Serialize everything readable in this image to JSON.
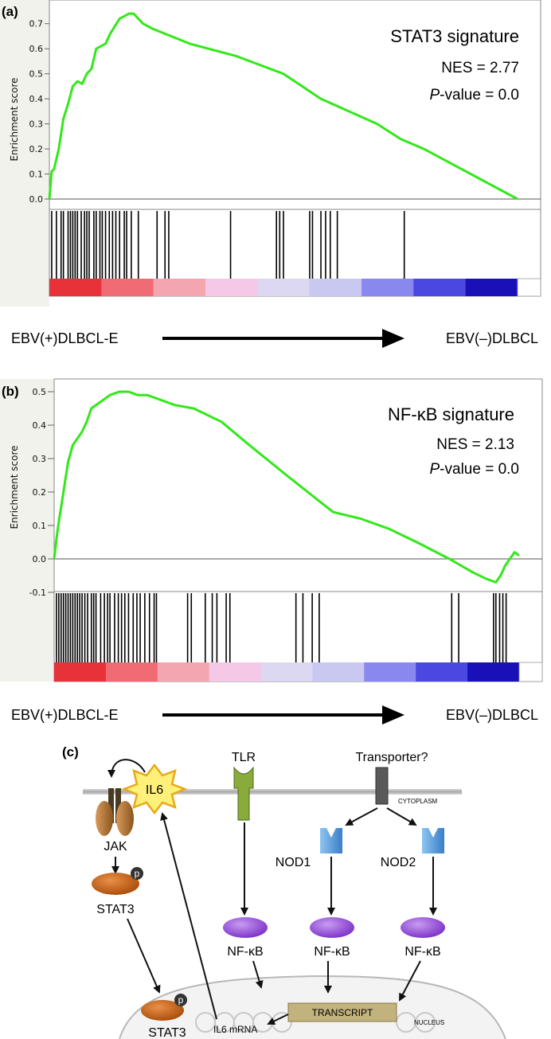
{
  "chart_data": [
    {
      "type": "line",
      "panel_label": "(a)",
      "title": "STAT3 signature",
      "nes_text": "NES = 2.77",
      "pvalue_italic": "P",
      "pvalue_rest": "-value = 0.0",
      "ylabel": "Enrichment score",
      "ylim": [
        0.0,
        0.75
      ],
      "y_ticks": [
        "0.0",
        "0.1",
        "0.2",
        "0.3",
        "0.4",
        "0.5",
        "0.6",
        "0.7"
      ],
      "y_tick_values": [
        0.0,
        0.1,
        0.2,
        0.3,
        0.4,
        0.5,
        0.6,
        0.7
      ],
      "x_range": [
        0,
        1
      ],
      "series": [
        {
          "color": "#33e81a",
          "x": [
            0.0,
            0.005,
            0.01,
            0.02,
            0.03,
            0.04,
            0.05,
            0.06,
            0.07,
            0.08,
            0.09,
            0.1,
            0.11,
            0.12,
            0.13,
            0.14,
            0.15,
            0.16,
            0.17,
            0.18,
            0.2,
            0.22,
            0.3,
            0.4,
            0.5,
            0.58,
            0.7,
            0.75,
            0.8,
            1.0
          ],
          "y": [
            0.0,
            0.11,
            0.12,
            0.2,
            0.32,
            0.38,
            0.45,
            0.47,
            0.46,
            0.5,
            0.52,
            0.6,
            0.61,
            0.62,
            0.66,
            0.69,
            0.72,
            0.73,
            0.74,
            0.74,
            0.7,
            0.68,
            0.62,
            0.57,
            0.5,
            0.4,
            0.3,
            0.24,
            0.2,
            0.0
          ]
        }
      ],
      "hits": [
        0.005,
        0.015,
        0.025,
        0.03,
        0.04,
        0.045,
        0.05,
        0.055,
        0.06,
        0.068,
        0.075,
        0.08,
        0.085,
        0.095,
        0.1,
        0.108,
        0.113,
        0.12,
        0.128,
        0.135,
        0.142,
        0.15,
        0.16,
        0.165,
        0.175,
        0.19,
        0.23,
        0.247,
        0.255,
        0.387,
        0.485,
        0.492,
        0.5,
        0.556,
        0.562,
        0.58,
        0.59,
        0.6,
        0.615,
        0.758
      ],
      "gradient_stops": [
        "#e8323a",
        "#f06b74",
        "#f4a6b0",
        "#f5c8e8",
        "#dcd8f2",
        "#c8c8f0",
        "#8888ee",
        "#4a48e0",
        "#1a10b8",
        "#ffffff"
      ]
    },
    {
      "type": "line",
      "panel_label": "(b)",
      "title": "NF-κB signature",
      "nes_text": "NES = 2.13",
      "pvalue_italic": "P",
      "pvalue_rest": "-value = 0.0",
      "ylabel": "Enrichment score",
      "ylim": [
        -0.1,
        0.5
      ],
      "y_ticks": [
        "-0.1",
        "0.0",
        "0.1",
        "0.2",
        "0.3",
        "0.4",
        "0.5"
      ],
      "y_tick_values": [
        -0.1,
        0.0,
        0.1,
        0.2,
        0.3,
        0.4,
        0.5
      ],
      "x_range": [
        0,
        1
      ],
      "series": [
        {
          "color": "#33e81a",
          "x": [
            0.0,
            0.005,
            0.01,
            0.02,
            0.03,
            0.04,
            0.05,
            0.06,
            0.07,
            0.08,
            0.1,
            0.12,
            0.14,
            0.16,
            0.18,
            0.2,
            0.22,
            0.26,
            0.3,
            0.36,
            0.42,
            0.5,
            0.6,
            0.66,
            0.72,
            0.78,
            0.85,
            0.9,
            0.93,
            0.95,
            0.96,
            0.97,
            0.98,
            0.99,
            1.0
          ],
          "y": [
            0.0,
            0.06,
            0.11,
            0.2,
            0.29,
            0.34,
            0.36,
            0.38,
            0.41,
            0.45,
            0.47,
            0.49,
            0.5,
            0.5,
            0.49,
            0.49,
            0.48,
            0.46,
            0.45,
            0.41,
            0.34,
            0.25,
            0.14,
            0.12,
            0.09,
            0.05,
            0.0,
            -0.04,
            -0.06,
            -0.07,
            -0.05,
            -0.02,
            0.0,
            0.02,
            0.01
          ]
        }
      ],
      "hits": [
        0.005,
        0.01,
        0.015,
        0.02,
        0.025,
        0.03,
        0.035,
        0.04,
        0.045,
        0.05,
        0.055,
        0.06,
        0.066,
        0.072,
        0.08,
        0.085,
        0.09,
        0.1,
        0.108,
        0.115,
        0.12,
        0.13,
        0.138,
        0.145,
        0.152,
        0.16,
        0.17,
        0.178,
        0.185,
        0.195,
        0.205,
        0.215,
        0.22,
        0.287,
        0.295,
        0.325,
        0.34,
        0.35,
        0.37,
        0.378,
        0.52,
        0.535,
        0.555,
        0.57,
        0.855,
        0.87,
        0.945,
        0.95,
        0.958,
        0.965,
        0.972
      ],
      "gradient_stops": [
        "#e8323a",
        "#f06b74",
        "#f4a6b0",
        "#f5c8e8",
        "#dcd8f2",
        "#c8c8f0",
        "#8888ee",
        "#4a48e0",
        "#1a10b8",
        "#ffffff"
      ]
    }
  ],
  "axis_arrows": [
    {
      "left_label": "EBV(+)DLBCL-E",
      "right_label": "EBV(–)DLBCL"
    },
    {
      "left_label": "EBV(+)DLBCL-E",
      "right_label": "EBV(–)DLBCL"
    }
  ],
  "diagram": {
    "panel_label": "(c)",
    "il6": "IL6",
    "tlr": "TLR",
    "transporter": "Transporter?",
    "cytoplasm": "CYTOPLASM",
    "jak": "JAK",
    "phospho": "p",
    "stat3_top": "STAT3",
    "stat3_bottom": "STAT3",
    "nod1": "NOD1",
    "nod2": "NOD2",
    "nfkb_1": "NF-κB",
    "nfkb_2": "NF-κB",
    "nfkb_3": "NF-κB",
    "transcript": "TRANSCRIPT",
    "il6_mrna": "IL6 mRNA",
    "nucleus": "NUCLEUS"
  }
}
